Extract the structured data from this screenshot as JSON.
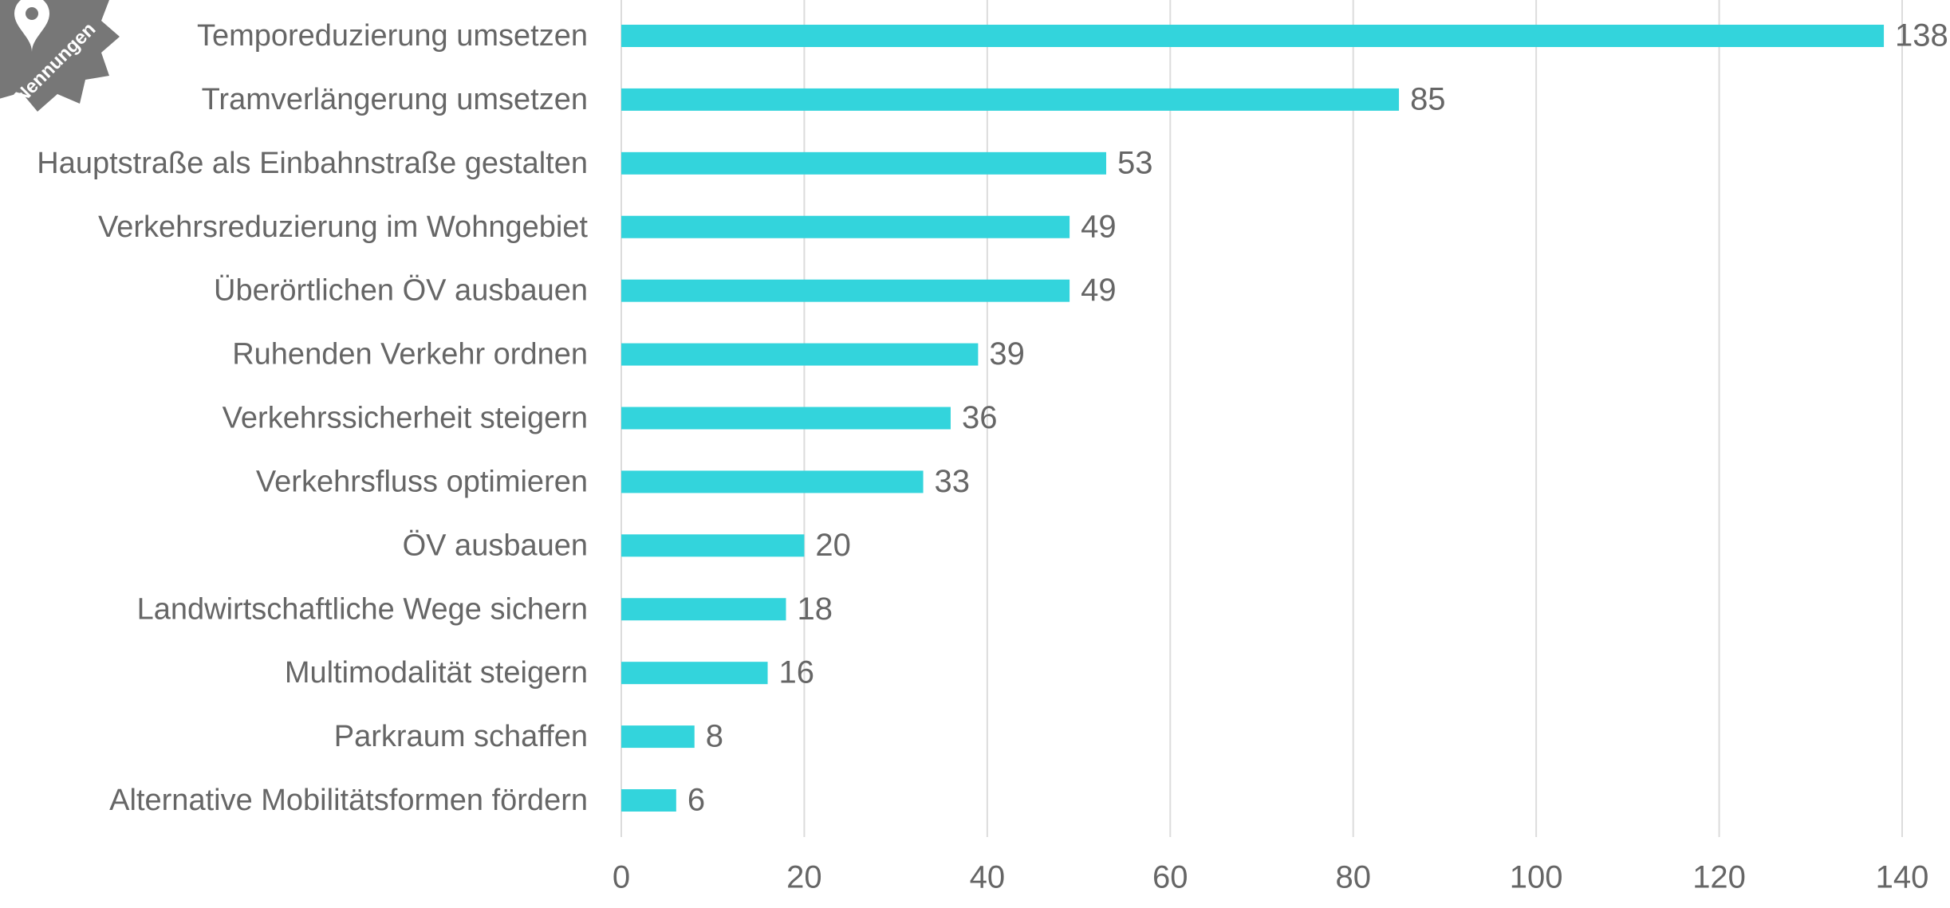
{
  "badge": "Nennungen",
  "chart_data": {
    "type": "barh",
    "categories": [
      "Temporeduzierung umsetzen",
      "Tramverlängerung umsetzen",
      "Hauptstraße als Einbahnstraße gestalten",
      "Verkehrsreduzierung im Wohngebiet",
      "Überörtlichen ÖV ausbauen",
      "Ruhenden Verkehr ordnen",
      "Verkehrssicherheit steigern",
      "Verkehrsfluss optimieren",
      "ÖV ausbauen",
      "Landwirtschaftliche Wege sichern",
      "Multimodalität steigern",
      "Parkraum schaffen",
      "Alternative Mobilitätsformen fördern"
    ],
    "values": [
      138,
      85,
      53,
      49,
      49,
      39,
      36,
      33,
      20,
      18,
      16,
      8,
      6
    ],
    "color": "#33d4dc",
    "xlim": [
      0,
      140
    ],
    "xticks": [
      0,
      20,
      40,
      60,
      80,
      100,
      120,
      140
    ],
    "grid": true
  }
}
